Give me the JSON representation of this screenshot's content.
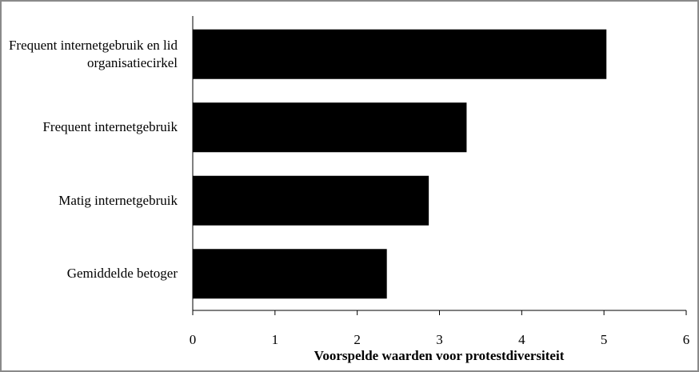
{
  "chart_data": {
    "type": "barh",
    "categories": [
      "Frequent internetgebruik en lid organisatiecirkel",
      "Frequent internetgebruik",
      "Matig internetgebruik",
      "Gemiddelde betoger"
    ],
    "values": [
      5.03,
      3.33,
      2.87,
      2.36
    ],
    "color": "#000000",
    "x_label": "Voorspelde waarden voor protestdiversiteit",
    "xlim": [
      0,
      6
    ],
    "xticks": [
      0,
      1,
      2,
      3,
      4,
      5,
      6
    ],
    "grid": false
  }
}
